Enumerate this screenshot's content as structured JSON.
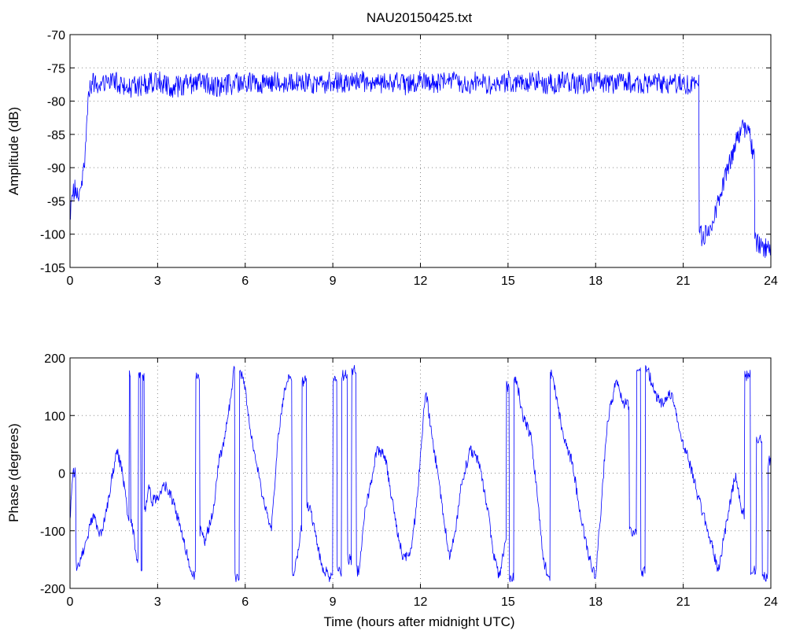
{
  "title": "NAU20150425.txt",
  "colors": {
    "series": "#0000ff",
    "axes": "#000000",
    "grid": "#8a8a8a"
  },
  "chart_data": [
    {
      "type": "line",
      "title": "NAU20150425.txt",
      "xlabel": "",
      "ylabel": "Amplitude (dB)",
      "xlim": [
        0,
        24
      ],
      "ylim": [
        -105,
        -70
      ],
      "xticks": [
        0,
        3,
        6,
        9,
        12,
        15,
        18,
        21,
        24
      ],
      "yticks": [
        -105,
        -100,
        -95,
        -90,
        -85,
        -80,
        -75,
        -70
      ],
      "grid": true,
      "series": [
        {
          "color": "#0000ff",
          "x": [
            0,
            0.1,
            0.2,
            0.3,
            0.4,
            0.5,
            0.55,
            0.6,
            0.65,
            0.7,
            0.75,
            1,
            1.5,
            2,
            2.5,
            3,
            3.5,
            4,
            4.5,
            5,
            5.5,
            6,
            6.5,
            7,
            7.5,
            8,
            8.5,
            9,
            9.5,
            10,
            10.5,
            11,
            11.5,
            12,
            12.5,
            13,
            13.5,
            14,
            14.5,
            15,
            15.5,
            16,
            16.5,
            17,
            17.5,
            18,
            18.5,
            19,
            19.5,
            20,
            20.5,
            21,
            21.5,
            21.6,
            21.65,
            21.8,
            22,
            22.2,
            22.4,
            22.6,
            22.8,
            23,
            23.2,
            23.3,
            23.4,
            23.5,
            23.7,
            24
          ],
          "y": [
            -97,
            -94,
            -93,
            -95,
            -92,
            -90,
            -86,
            -82,
            -79,
            -78,
            -77,
            -77.5,
            -77,
            -78,
            -77.5,
            -77,
            -78,
            -77.5,
            -77,
            -78,
            -77.5,
            -77,
            -77.5,
            -77,
            -77.5,
            -77,
            -77.5,
            -77,
            -77.5,
            -77,
            -77.5,
            -77,
            -77.5,
            -77,
            -77.5,
            -77,
            -77.5,
            -77,
            -77.5,
            -77,
            -77.5,
            -77,
            -77.5,
            -77,
            -77.5,
            -77,
            -77.5,
            -77,
            -77.5,
            -77,
            -77.5,
            -77.5,
            -77.5,
            -99,
            -101,
            -100,
            -98,
            -95,
            -92,
            -89,
            -86,
            -84,
            -84,
            -86,
            -88,
            -101,
            -102,
            -102
          ]
        }
      ]
    },
    {
      "type": "line",
      "title": "",
      "xlabel": "Time (hours after midnight UTC)",
      "ylabel": "Phase (degrees)",
      "xlim": [
        0,
        24
      ],
      "ylim": [
        -200,
        200
      ],
      "xticks": [
        0,
        3,
        6,
        9,
        12,
        15,
        18,
        21,
        24
      ],
      "yticks": [
        -200,
        -100,
        0,
        100,
        200
      ],
      "grid": true,
      "series": [
        {
          "color": "#0000ff",
          "x": [
            0,
            0.1,
            0.3,
            0.5,
            0.8,
            1.0,
            1.2,
            1.4,
            1.6,
            1.8,
            2.0,
            2.05,
            2.1,
            2.3,
            2.4,
            2.45,
            2.5,
            2.6,
            2.7,
            2.8,
            3.0,
            3.3,
            3.6,
            3.9,
            4.2,
            4.4,
            4.5,
            4.6,
            4.9,
            5.1,
            5.3,
            5.5,
            5.6,
            5.7,
            5.9,
            6.0,
            6.1,
            6.3,
            6.6,
            6.9,
            7.1,
            7.3,
            7.5,
            7.7,
            7.9,
            8.0,
            8.2,
            8.4,
            8.6,
            8.9,
            9.1,
            9.2,
            9.4,
            9.6,
            9.7,
            9.9,
            10.1,
            10.3,
            10.5,
            10.8,
            11.1,
            11.4,
            11.7,
            11.9,
            12.1,
            12.2,
            12.4,
            12.6,
            12.8,
            13.0,
            13.2,
            13.4,
            13.7,
            14.0,
            14.3,
            14.5,
            14.7,
            14.9,
            15.0,
            15.1,
            15.3,
            15.5,
            15.8,
            16.0,
            16.2,
            16.4,
            16.5,
            16.7,
            16.9,
            17.2,
            17.5,
            17.8,
            18.0,
            18.2,
            18.4,
            18.7,
            19.0,
            19.3,
            19.5,
            19.6,
            19.8,
            20.0,
            20.3,
            20.6,
            20.9,
            21.2,
            21.5,
            21.8,
            22.0,
            22.2,
            22.5,
            22.8,
            23.0,
            23.2,
            23.4,
            23.6,
            23.8,
            24.0
          ],
          "y": [
            -80,
            0,
            -160,
            -130,
            -70,
            -110,
            -80,
            -20,
            40,
            0,
            -80,
            170,
            -80,
            -150,
            175,
            -170,
            170,
            -60,
            -20,
            -50,
            -40,
            -20,
            -60,
            -120,
            -180,
            170,
            -100,
            -120,
            -70,
            20,
            60,
            130,
            180,
            -180,
            170,
            150,
            100,
            40,
            -40,
            -100,
            50,
            130,
            170,
            -170,
            -100,
            160,
            -60,
            -100,
            -160,
            -180,
            160,
            -170,
            170,
            -150,
            180,
            -170,
            -60,
            -20,
            40,
            30,
            -70,
            -150,
            -130,
            -40,
            100,
            140,
            60,
            0,
            -80,
            -150,
            -100,
            -20,
            40,
            20,
            -60,
            -140,
            -180,
            -120,
            150,
            -180,
            160,
            100,
            60,
            -40,
            -150,
            -180,
            170,
            120,
            60,
            20,
            -80,
            -150,
            -180,
            -50,
            90,
            160,
            120,
            -100,
            180,
            -170,
            180,
            140,
            120,
            140,
            70,
            20,
            -40,
            -90,
            -130,
            -170,
            -80,
            0,
            -70,
            170,
            -170,
            60,
            -180,
            20
          ]
        }
      ]
    }
  ]
}
